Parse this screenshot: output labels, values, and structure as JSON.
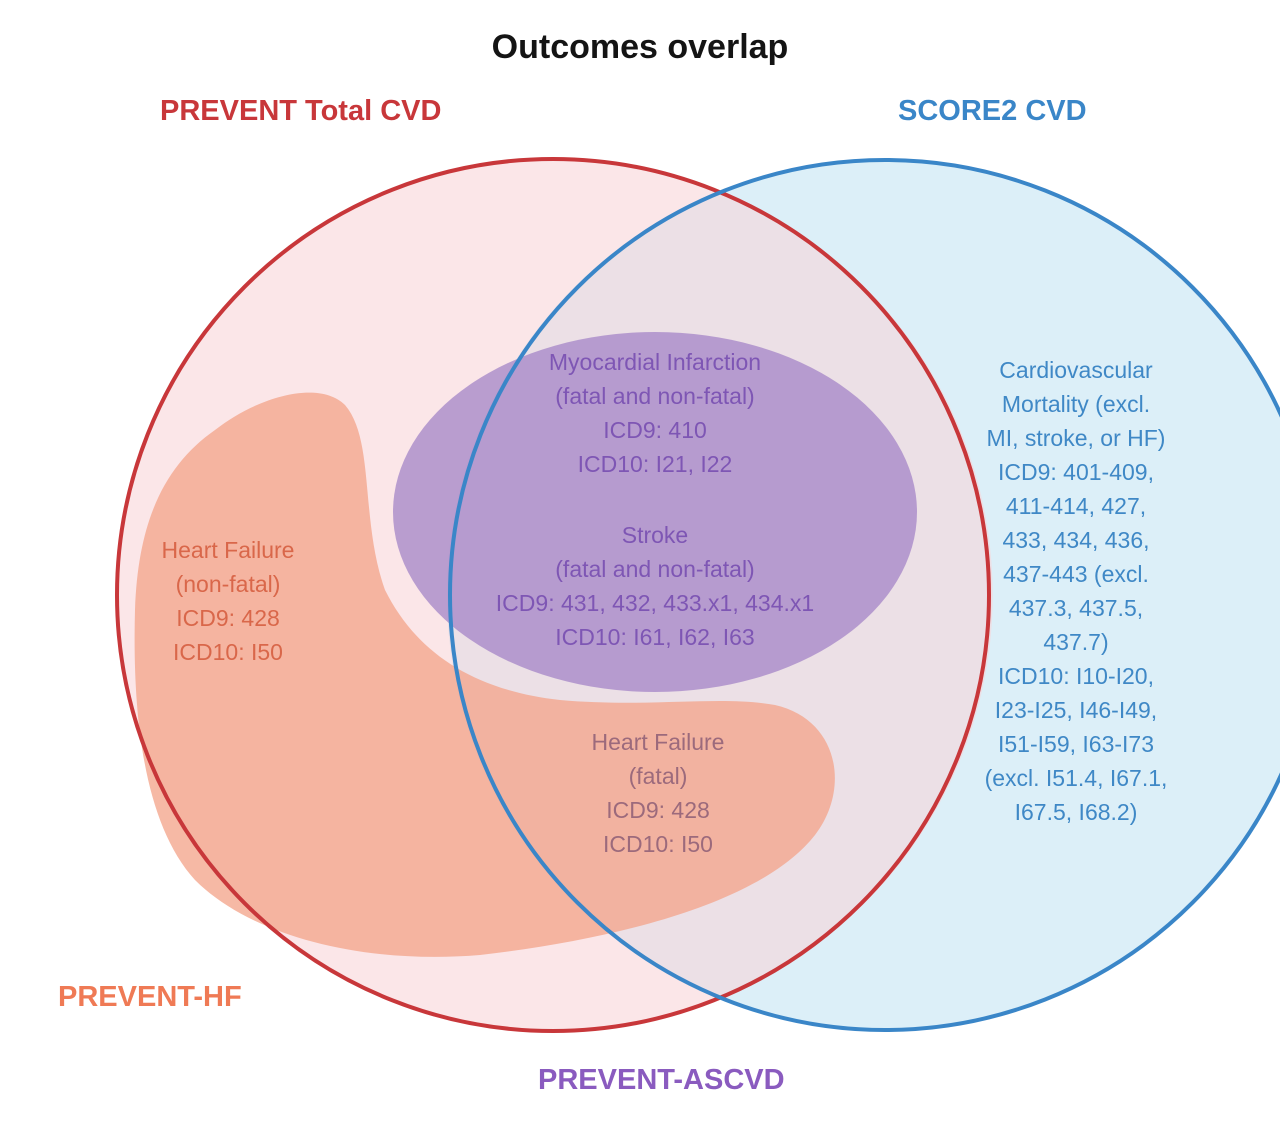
{
  "title": "Outcomes overlap",
  "colors": {
    "prevent_total": "#c8373a",
    "score2": "#3a86c8",
    "prevent_hf": "#ef7a55",
    "prevent_ascvd": "#8a5bbf",
    "hf_text": "#d9674a",
    "mi_text": "#7e56b4",
    "cv_text": "#3f88c6",
    "fatal_hf_text": "#9c6a7c"
  },
  "sets": {
    "prevent_total": {
      "label": "PREVENT Total CVD"
    },
    "score2": {
      "label": "SCORE2 CVD"
    },
    "prevent_hf": {
      "label": "PREVENT-HF"
    },
    "prevent_ascvd": {
      "label": "PREVENT-ASCVD"
    }
  },
  "regions": {
    "hf_nonfatal": [
      "Heart Failure",
      "(non-fatal)",
      "ICD9: 428",
      "ICD10: I50"
    ],
    "mi": [
      "Myocardial Infarction",
      "(fatal and non-fatal)",
      "ICD9: 410",
      "ICD10: I21, I22"
    ],
    "stroke": [
      "Stroke",
      "(fatal and non-fatal)",
      "ICD9: 431, 432, 433.x1, 434.x1",
      "ICD10: I61, I62, I63"
    ],
    "hf_fatal": [
      "Heart Failure",
      "(fatal)",
      "ICD9: 428",
      "ICD10: I50"
    ],
    "cv_mortality": [
      "Cardiovascular",
      "Mortality (excl.",
      "MI, stroke, or HF)",
      "ICD9: 401-409,",
      "411-414, 427,",
      "433, 434, 436,",
      "437-443 (excl.",
      "437.3, 437.5,",
      "437.7)",
      "ICD10: I10-I20,",
      "I23-I25, I46-I49,",
      "I51-I59, I63-I73",
      "(excl. I51.4, I67.1,",
      "I67.5, I68.2)"
    ]
  }
}
